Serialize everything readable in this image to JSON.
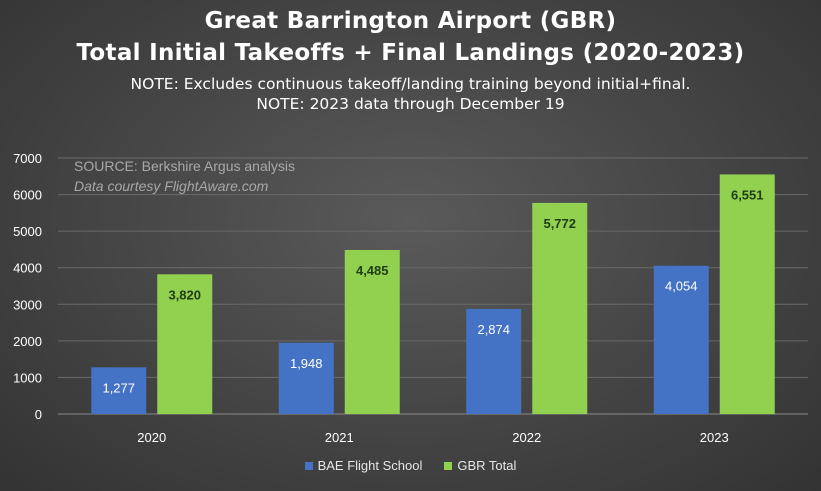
{
  "chart_data": {
    "type": "bar",
    "title": "Great Barrington Airport (GBR)",
    "subtitle": "Total Initial Takeoffs + Final Landings (2020-2023)",
    "notes": [
      "NOTE: Excludes continuous takeoff/landing training beyond initial+final.",
      "NOTE: 2023 data through December 19"
    ],
    "source": "SOURCE: Berkshire Argus analysis",
    "credit": "Data courtesy FlightAware.com",
    "categories": [
      "2020",
      "2021",
      "2022",
      "2023"
    ],
    "series": [
      {
        "name": "BAE Flight School",
        "color": "#4472c4",
        "values": [
          1277,
          1948,
          2874,
          4054
        ],
        "labels": [
          "1,277",
          "1,948",
          "2,874",
          "4,054"
        ],
        "label_color": "#ffffff"
      },
      {
        "name": "GBR Total",
        "color": "#92d050",
        "values": [
          3820,
          4485,
          5772,
          6551
        ],
        "labels": [
          "3,820",
          "4,485",
          "5,772",
          "6,551"
        ],
        "label_color": "#1f3d14"
      }
    ],
    "ylim": [
      0,
      7000
    ],
    "yticks": [
      "0",
      "1000",
      "2000",
      "3000",
      "4000",
      "5000",
      "6000",
      "7000"
    ],
    "grid": true,
    "legend": "bottom-center"
  }
}
